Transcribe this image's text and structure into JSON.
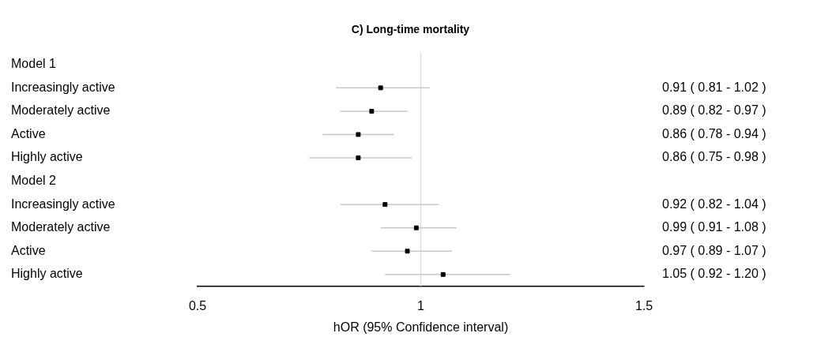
{
  "chart_data": {
    "type": "scatter",
    "orientation": "horizontal",
    "title": "C) Long-time mortality",
    "xlabel": "hOR (95% Confidence interval)",
    "categories": [
      "Model 1",
      "Increasingly active",
      "Moderately active",
      "Active",
      "Highly active",
      "Model 2",
      "Increasingly active",
      "Moderately active",
      "Active",
      "Highly active"
    ],
    "values": [
      null,
      0.91,
      0.89,
      0.86,
      0.86,
      null,
      0.92,
      0.99,
      0.97,
      1.05
    ],
    "errors": [
      null,
      [
        0.81,
        1.02
      ],
      [
        0.82,
        0.97
      ],
      [
        0.78,
        0.94
      ],
      [
        0.75,
        0.98
      ],
      null,
      [
        0.82,
        1.04
      ],
      [
        0.91,
        1.08
      ],
      [
        0.89,
        1.07
      ],
      [
        0.92,
        1.2
      ]
    ],
    "value_labels": [
      null,
      "0.91 ( 0.81 - 1.02 )",
      "0.89 ( 0.82 - 0.97 )",
      "0.86 ( 0.78 - 0.94 )",
      "0.86 ( 0.75 - 0.98 )",
      null,
      "0.92 ( 0.82 - 1.04 )",
      "0.99 ( 0.91 - 1.08 )",
      "0.97 ( 0.89 - 1.07 )",
      "1.05 ( 0.92 - 1.20 )"
    ],
    "color": "#000000",
    "marker": "square",
    "xlim": [
      0.5,
      1.5
    ],
    "xticks": [
      0.5,
      1,
      1.5
    ],
    "ref_lines": [
      {
        "axis": "x",
        "value": 1,
        "color": "#dddddd"
      }
    ],
    "legend": false
  }
}
